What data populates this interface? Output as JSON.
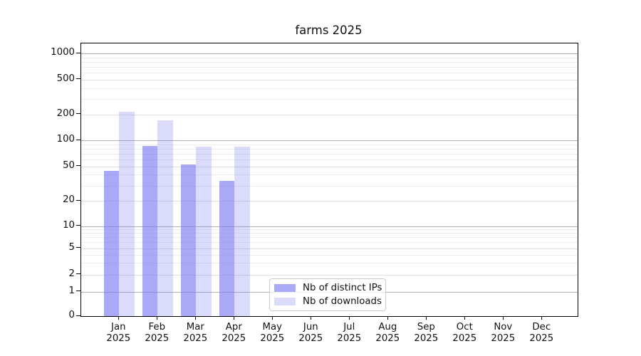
{
  "title": "farms 2025",
  "legend": {
    "items": [
      {
        "label": "Nb of distinct IPs",
        "color": "rgba(124,124,240,0.66)"
      },
      {
        "label": "Nb of downloads",
        "color": "rgba(124,124,240,0.28)"
      }
    ]
  },
  "axes": {
    "y": {
      "tick_labels": [
        "0",
        "1",
        "2",
        "5",
        "10",
        "20",
        "50",
        "100",
        "200",
        "500",
        "1000"
      ]
    },
    "x": {
      "months": [
        "Jan",
        "Feb",
        "Mar",
        "Apr",
        "May",
        "Jun",
        "Jul",
        "Aug",
        "Sep",
        "Oct",
        "Nov",
        "Dec"
      ],
      "year": "2025"
    }
  },
  "chart_data": {
    "type": "bar",
    "title": "farms 2025",
    "categories": [
      "Jan 2025",
      "Feb 2025",
      "Mar 2025",
      "Apr 2025",
      "May 2025",
      "Jun 2025",
      "Jul 2025",
      "Aug 2025",
      "Sep 2025",
      "Oct 2025",
      "Nov 2025",
      "Dec 2025"
    ],
    "series": [
      {
        "name": "Nb of distinct IPs",
        "color": "rgba(124,124,240,0.66)",
        "values": [
          44,
          86,
          53,
          34,
          0,
          0,
          0,
          0,
          0,
          0,
          0,
          0
        ]
      },
      {
        "name": "Nb of downloads",
        "color": "rgba(124,124,240,0.28)",
        "values": [
          213,
          170,
          84,
          84,
          0,
          0,
          0,
          0,
          0,
          0,
          0,
          0
        ]
      }
    ],
    "yscale": "symlog",
    "yticks": [
      0,
      1,
      2,
      5,
      10,
      20,
      50,
      100,
      200,
      500,
      1000
    ],
    "ylim": [
      0,
      1500
    ],
    "grid": "horizontal major+minor, darker lines at powers of 10",
    "legend_position": "lower center"
  }
}
